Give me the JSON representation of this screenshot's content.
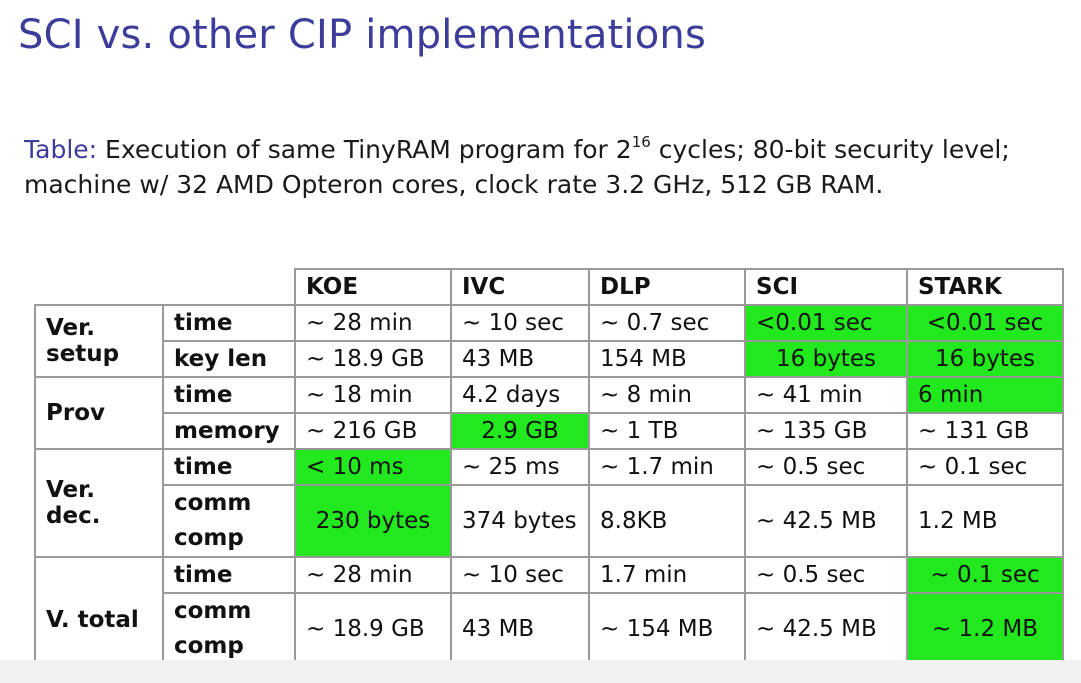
{
  "slide": {
    "title": "SCI vs. other CIP implementations",
    "caption": {
      "label": "Table:",
      "line1_before": "Execution of same TinyRAM program for 2",
      "line1_sup": "16",
      "line1_after": " cycles; 80-bit security level;",
      "line2": "machine w/ 32 AMD Opteron cores, clock rate 3.2 GHz, 512 GB RAM."
    }
  },
  "table": {
    "columns": [
      "KOE",
      "IVC",
      "DLP",
      "SCI",
      "STARK"
    ],
    "groups": [
      {
        "line1": "Ver.",
        "line2": "setup",
        "rows": [
          {
            "metric": "time",
            "values": [
              "∼ 28 min",
              "∼ 10 sec",
              "∼ 0.7 sec",
              "<0.01 sec",
              "<0.01 sec"
            ]
          },
          {
            "metric": "key len",
            "values": [
              "∼ 18.9 GB",
              "43 MB",
              "154 MB",
              "16 bytes",
              "16 bytes"
            ]
          }
        ]
      },
      {
        "line1": "Prov",
        "line2": "",
        "rows": [
          {
            "metric": "time",
            "values": [
              "∼ 18 min",
              "4.2 days",
              "∼ 8 min",
              "∼ 41 min",
              "6 min"
            ]
          },
          {
            "metric": "memory",
            "values": [
              "∼ 216 GB",
              "2.9 GB",
              "∼ 1 TB",
              "∼ 135 GB",
              "∼ 131 GB"
            ]
          }
        ]
      },
      {
        "line1": "Ver.",
        "line2": "dec.",
        "rows": [
          {
            "metric": "time",
            "values": [
              "< 10 ms",
              "∼ 25 ms",
              "∼ 1.7 min",
              "∼ 0.5 sec",
              "∼ 0.1 sec"
            ]
          },
          {
            "metric_line1": "comm",
            "metric_line2": "comp",
            "values": [
              "230 bytes",
              "374 bytes",
              "8.8KB",
              "∼ 42.5 MB",
              "1.2 MB"
            ]
          }
        ]
      },
      {
        "line1": "V. total",
        "line2": "",
        "rows": [
          {
            "metric": "time",
            "values": [
              "∼ 28 min",
              "∼ 10 sec",
              "1.7 min",
              "∼ 0.5 sec",
              "∼ 0.1 sec"
            ]
          },
          {
            "metric_line1": "comm",
            "metric_line2": "comp",
            "values": [
              "∼ 18.9 GB",
              "43 MB",
              "∼ 154 MB",
              "∼ 42.5 MB",
              "∼ 1.2 MB"
            ]
          }
        ]
      }
    ],
    "highlight_color": "#22e81e"
  }
}
